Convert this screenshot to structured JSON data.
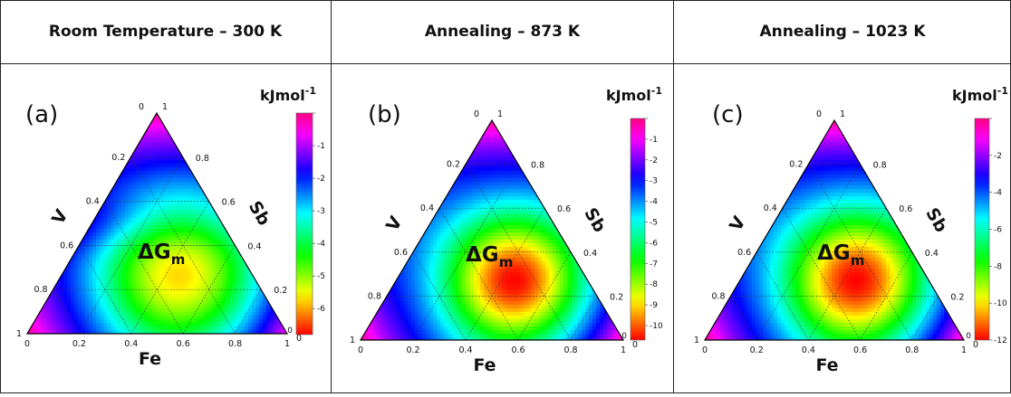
{
  "headers": [
    "Room Temperature – 300 K",
    "Annealing – 873 K",
    "Annealing – 1023 K"
  ],
  "chart_data": [
    {
      "type": "heatmap",
      "subtype": "ternary",
      "panel_label": "(a)",
      "annotation": "ΔG",
      "annotation_subscript": "m",
      "axes": {
        "left": "V",
        "right": "Sb",
        "bottom": "Fe"
      },
      "axis_ticks": [
        "0",
        "0.2",
        "0.4",
        "0.6",
        "0.8",
        "1"
      ],
      "colorbar": {
        "unit": "kJmol",
        "unit_superscript": "-1",
        "ticks": [
          "-1",
          "-2",
          "-3",
          "-4",
          "-5",
          "-6",
          "0"
        ],
        "min": -6.8,
        "max": 0,
        "colormap": "hsv-rainbow",
        "min_color": "#ff1a00",
        "max_color": "#ff007f"
      }
    },
    {
      "type": "heatmap",
      "subtype": "ternary",
      "panel_label": "(b)",
      "annotation": "ΔG",
      "annotation_subscript": "m",
      "axes": {
        "left": "V",
        "right": "Sb",
        "bottom": "Fe"
      },
      "axis_ticks": [
        "0",
        "0.2",
        "0.4",
        "0.6",
        "0.8",
        "1"
      ],
      "colorbar": {
        "unit": "kJmol",
        "unit_superscript": "-1",
        "ticks": [
          "-1",
          "-2",
          "-3",
          "-4",
          "-5",
          "-6",
          "-7",
          "-8",
          "-9",
          "-10",
          "0"
        ],
        "min": -10.7,
        "max": 0,
        "colormap": "hsv-rainbow",
        "min_color": "#ff1a00",
        "max_color": "#ff007f"
      }
    },
    {
      "type": "heatmap",
      "subtype": "ternary",
      "panel_label": "(c)",
      "annotation": "ΔG",
      "annotation_subscript": "m",
      "axes": {
        "left": "V",
        "right": "Sb",
        "bottom": "Fe"
      },
      "axis_ticks": [
        "0",
        "0.2",
        "0.4",
        "0.6",
        "0.8",
        "1"
      ],
      "colorbar": {
        "unit": "kJmol",
        "unit_superscript": "-1",
        "ticks": [
          "-2",
          "-4",
          "-6",
          "-8",
          "-10",
          "-12",
          "0"
        ],
        "min": -12,
        "max": 0,
        "colormap": "hsv-rainbow",
        "min_color": "#ff1a00",
        "max_color": "#ff007f"
      }
    }
  ]
}
